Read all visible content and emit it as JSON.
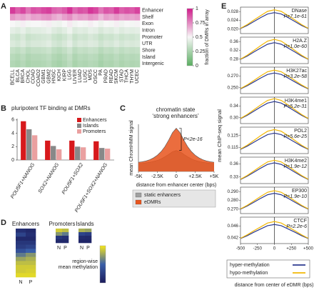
{
  "chart_data": [
    {
      "type": "heatmap",
      "panel_label": "A",
      "rows": [
        "Enhancer",
        "Shelf",
        "Exon",
        "Intron",
        "Promoter",
        "UTR",
        "Shore",
        "Island",
        "Intergenic"
      ],
      "columns": [
        "BCELL",
        "BLCA",
        "BRCA",
        "CHOL",
        "COAD",
        "COAD2",
        "GBM1",
        "GBM2",
        "HNSC",
        "KICH",
        "KIRP",
        "LGG",
        "LIVER",
        "LUAD",
        "LUSC",
        "MDS",
        "OSCC",
        "PA",
        "PRAD",
        "READ",
        "SKCM",
        "STAD",
        "THCA",
        "THYM",
        "UCEC"
      ],
      "values": [
        [
          0.93,
          0.85,
          0.9,
          0.8,
          0.88,
          0.86,
          0.9,
          0.92,
          0.84,
          0.82,
          0.86,
          0.95,
          0.83,
          0.88,
          0.86,
          0.94,
          0.9,
          0.8,
          0.87,
          0.85,
          0.93,
          0.85,
          0.88,
          0.86,
          0.91
        ],
        [
          0.72,
          0.68,
          0.7,
          0.66,
          0.7,
          0.69,
          0.72,
          0.73,
          0.68,
          0.65,
          0.7,
          0.74,
          0.67,
          0.7,
          0.69,
          0.73,
          0.71,
          0.64,
          0.7,
          0.68,
          0.72,
          0.68,
          0.7,
          0.69,
          0.71
        ],
        [
          0.5,
          0.48,
          0.52,
          0.49,
          0.5,
          0.5,
          0.51,
          0.52,
          0.48,
          0.47,
          0.5,
          0.53,
          0.48,
          0.5,
          0.49,
          0.52,
          0.5,
          0.47,
          0.5,
          0.49,
          0.52,
          0.48,
          0.5,
          0.49,
          0.51
        ],
        [
          0.44,
          0.42,
          0.45,
          0.41,
          0.43,
          0.43,
          0.44,
          0.46,
          0.42,
          0.4,
          0.43,
          0.47,
          0.41,
          0.43,
          0.42,
          0.45,
          0.44,
          0.4,
          0.43,
          0.42,
          0.45,
          0.42,
          0.44,
          0.43,
          0.44
        ],
        [
          0.38,
          0.36,
          0.4,
          0.35,
          0.37,
          0.38,
          0.39,
          0.4,
          0.36,
          0.34,
          0.37,
          0.41,
          0.35,
          0.38,
          0.37,
          0.4,
          0.38,
          0.34,
          0.37,
          0.36,
          0.39,
          0.36,
          0.38,
          0.37,
          0.39
        ],
        [
          0.41,
          0.39,
          0.42,
          0.38,
          0.4,
          0.4,
          0.41,
          0.43,
          0.39,
          0.37,
          0.4,
          0.44,
          0.38,
          0.41,
          0.4,
          0.42,
          0.41,
          0.37,
          0.4,
          0.39,
          0.42,
          0.39,
          0.41,
          0.4,
          0.41
        ],
        [
          0.34,
          0.32,
          0.35,
          0.31,
          0.33,
          0.33,
          0.34,
          0.36,
          0.32,
          0.3,
          0.33,
          0.37,
          0.31,
          0.34,
          0.33,
          0.35,
          0.34,
          0.3,
          0.33,
          0.32,
          0.35,
          0.32,
          0.34,
          0.33,
          0.34
        ],
        [
          0.3,
          0.28,
          0.31,
          0.27,
          0.29,
          0.29,
          0.3,
          0.32,
          0.28,
          0.26,
          0.29,
          0.33,
          0.27,
          0.3,
          0.29,
          0.31,
          0.3,
          0.26,
          0.29,
          0.28,
          0.31,
          0.28,
          0.3,
          0.29,
          0.3
        ],
        [
          0.28,
          0.26,
          0.29,
          0.25,
          0.27,
          0.27,
          0.28,
          0.3,
          0.26,
          0.24,
          0.27,
          0.31,
          0.25,
          0.28,
          0.27,
          0.29,
          0.28,
          0.24,
          0.27,
          0.26,
          0.29,
          0.26,
          0.28,
          0.27,
          0.28
        ]
      ],
      "zlim": [
        0,
        1
      ],
      "zticks": [
        0,
        0.25,
        0.5,
        0.75,
        1
      ],
      "colors": [
        "#5aae61",
        "#f7f7f7",
        "#d01c8b"
      ],
      "colorbar_label": "fraction of DMRs in array"
    },
    {
      "type": "bar",
      "panel_label": "B",
      "title": "pluripotent TF binding at DMRs",
      "categories": [
        "POU5F1+NANOG",
        "SOX2+NANOG",
        "POU5F1+SOX2",
        "POU5F1+SOX2+NANOG"
      ],
      "series": [
        {
          "name": "Enhancers",
          "color": "#d7191c",
          "values": [
            5.8,
            2.9,
            2.9,
            2.8
          ]
        },
        {
          "name": "Islands",
          "color": "#888888",
          "values": [
            4.6,
            2.1,
            2.0,
            1.8
          ]
        },
        {
          "name": "Promoters",
          "color": "#eaa0a0",
          "values": [
            3.7,
            1.6,
            1.9,
            1.7
          ]
        }
      ],
      "ylim": [
        0,
        6.2
      ],
      "yticks": [
        0,
        2,
        4,
        6
      ],
      "legend": "upper right"
    },
    {
      "type": "line",
      "panel_label": "C",
      "title": [
        "chromatin state",
        "‘strong enhancers’"
      ],
      "x": [
        -5000,
        -4500,
        -4000,
        -3500,
        -3000,
        -2500,
        -2000,
        -1500,
        -1000,
        -500,
        0,
        500,
        1000,
        1500,
        2000,
        2500,
        3000,
        3500,
        4000,
        4500,
        5000
      ],
      "series": [
        {
          "name": "static enhancers",
          "color": "#a0a0a0",
          "values": [
            0.3,
            0.31,
            0.33,
            0.35,
            0.38,
            0.42,
            0.48,
            0.56,
            0.65,
            0.75,
            0.8,
            0.75,
            0.65,
            0.56,
            0.48,
            0.42,
            0.38,
            0.35,
            0.33,
            0.31,
            0.3
          ]
        },
        {
          "name": "eDMRs",
          "color": "#e8541c",
          "values": [
            0.35,
            0.37,
            0.4,
            0.45,
            0.52,
            0.62,
            0.76,
            0.95,
            1.2,
            1.48,
            1.65,
            1.48,
            1.2,
            0.95,
            0.76,
            0.62,
            0.52,
            0.45,
            0.4,
            0.37,
            0.35
          ]
        }
      ],
      "xlim": [
        -5000,
        5000
      ],
      "ylim": [
        0,
        1.8
      ],
      "xticks": [
        {
          "value": -5000,
          "label": "-5K"
        },
        {
          "value": -2500,
          "label": "-2.5K"
        },
        0,
        {
          "value": 2500,
          "label": "+2.5K"
        },
        {
          "value": 5000,
          "label": "+5K"
        }
      ],
      "xlabel": "distance from enhancer center (bps)",
      "ylabel": "mean ChromHMM signal",
      "annotation": "P<2e-16",
      "area": true,
      "legend": "below"
    },
    {
      "type": "heatmap",
      "panel_label": "D",
      "title": "Enhancers",
      "columns": [
        "N",
        "P"
      ],
      "values": [
        [
          0.15,
          0.1
        ],
        [
          0.3,
          0.15
        ],
        [
          0.1,
          0.1
        ],
        [
          0.2,
          0.2
        ],
        [
          0.25,
          0.3
        ],
        [
          0.4,
          0.5
        ],
        [
          0.6,
          0.7
        ],
        [
          0.75,
          0.8
        ],
        [
          0.85,
          0.85
        ],
        [
          0.9,
          0.9
        ],
        [
          0.9,
          0.92
        ],
        [
          0.95,
          0.95
        ]
      ],
      "zlim": [
        0,
        1
      ],
      "colors": [
        "#1b1b5c",
        "#3a5fa8",
        "#f5e61a"
      ]
    },
    {
      "type": "heatmap",
      "title": "Promoters",
      "columns": [
        "N",
        "P"
      ],
      "values": [
        [
          0.9,
          0.85
        ],
        [
          0.7,
          0.6
        ],
        [
          0.2,
          0.15
        ],
        [
          0.1,
          0.1
        ]
      ],
      "zlim": [
        0,
        1
      ],
      "colors": [
        "#1b1b5c",
        "#3a5fa8",
        "#f5e61a"
      ]
    },
    {
      "type": "heatmap",
      "title": "Islands",
      "columns": [
        "N",
        "P"
      ],
      "values": [
        [
          0.8,
          0.75
        ],
        [
          0.3,
          0.25
        ],
        [
          0.12,
          0.1
        ],
        [
          0.08,
          0.08
        ]
      ],
      "zlim": [
        0,
        1
      ],
      "colors": [
        "#1b1b5c",
        "#3a5fa8",
        "#f5e61a"
      ],
      "colorbar_label": [
        "region-wise",
        "mean methylation"
      ]
    },
    {
      "type": "line",
      "panel_label": "E",
      "title": "DNase",
      "annotation": "P=7.1e-61",
      "ylabel": "mean ChIP-seq signal",
      "legend": "bottom",
      "x": [
        -500,
        -400,
        -300,
        -200,
        -100,
        0,
        100,
        200,
        300,
        400,
        500
      ],
      "xlim": [
        -500,
        500
      ],
      "ylim": [
        0.018,
        0.03
      ],
      "yticks": [
        {
          "value": 0.02,
          "label": "0.020"
        },
        0.024,
        0.028
      ],
      "series": [
        {
          "name": "hyper-methylation",
          "color": "#2b3990",
          "values": [
            0.0203,
            0.0217,
            0.0235,
            0.0253,
            0.0269,
            0.0275,
            0.0269,
            0.0253,
            0.0235,
            0.0217,
            0.0203
          ]
        },
        {
          "name": "hypo-methylation",
          "color": "#f2b705",
          "values": [
            0.0204,
            0.0221,
            0.0242,
            0.0262,
            0.0281,
            0.0288,
            0.0281,
            0.0262,
            0.0242,
            0.0221,
            0.0204
          ]
        }
      ]
    },
    {
      "type": "line",
      "title": "H2A.Z",
      "annotation": "P=1.0e-60",
      "x": [
        -500,
        -400,
        -300,
        -200,
        -100,
        0,
        100,
        200,
        300,
        400,
        500
      ],
      "xlim": [
        -500,
        500
      ],
      "ylim": [
        0.26,
        0.38
      ],
      "yticks": [
        0.28,
        0.32,
        0.36
      ],
      "series": [
        {
          "color": "#2b3990",
          "values": [
            0.279,
            0.294,
            0.313,
            0.331,
            0.348,
            0.355,
            0.348,
            0.331,
            0.313,
            0.294,
            0.279
          ]
        },
        {
          "color": "#f2b705",
          "values": [
            0.28,
            0.298,
            0.32,
            0.342,
            0.362,
            0.37,
            0.362,
            0.342,
            0.32,
            0.298,
            0.28
          ]
        }
      ]
    },
    {
      "type": "line",
      "title": "H3K27ac",
      "annotation": "P=3.2e-58",
      "x": [
        -500,
        -400,
        -300,
        -200,
        -100,
        0,
        100,
        200,
        300,
        400,
        500
      ],
      "xlim": [
        -500,
        500
      ],
      "ylim": [
        0.24,
        0.285
      ],
      "yticks": [
        {
          "value": 0.25,
          "label": "0.250"
        },
        {
          "value": 0.27,
          "label": "0.270"
        }
      ],
      "series": [
        {
          "color": "#2b3990",
          "values": [
            0.248,
            0.2534,
            0.26,
            0.2666,
            0.2726,
            0.275,
            0.2726,
            0.2666,
            0.26,
            0.2534,
            0.248
          ]
        },
        {
          "color": "#f2b705",
          "values": [
            0.2485,
            0.2548,
            0.2625,
            0.2702,
            0.2772,
            0.28,
            0.2772,
            0.2702,
            0.2625,
            0.2548,
            0.2485
          ]
        }
      ]
    },
    {
      "type": "line",
      "title": "H3K4me1",
      "annotation": "P=5.2e-31",
      "x": [
        -500,
        -400,
        -300,
        -200,
        -100,
        0,
        100,
        200,
        300,
        400,
        500
      ],
      "xlim": [
        -500,
        500
      ],
      "ylim": [
        0.28,
        0.37
      ],
      "yticks": [
        {
          "value": 0.3,
          "label": "0.30"
        },
        0.34
      ],
      "series": [
        {
          "color": "#2b3990",
          "values": [
            0.2965,
            0.3082,
            0.3225,
            0.3368,
            0.3498,
            0.355,
            0.3498,
            0.3368,
            0.3225,
            0.3082,
            0.2965
          ]
        },
        {
          "color": "#f2b705",
          "values": [
            0.2975,
            0.311,
            0.3275,
            0.344,
            0.359,
            0.365,
            0.359,
            0.344,
            0.3275,
            0.311,
            0.2975
          ]
        }
      ]
    },
    {
      "type": "line",
      "title": "POL2",
      "annotation": "P=5.6e-25",
      "x": [
        -500,
        -400,
        -300,
        -200,
        -100,
        0,
        100,
        200,
        300,
        400,
        500
      ],
      "xlim": [
        -500,
        500
      ],
      "ylim": [
        0.11,
        0.132
      ],
      "yticks": [
        0.115,
        0.125
      ],
      "series": [
        {
          "color": "#2b3990",
          "values": [
            0.1135,
            0.1162,
            0.1195,
            0.1228,
            0.1258,
            0.127,
            0.1258,
            0.1228,
            0.1195,
            0.1162,
            0.1135
          ]
        },
        {
          "color": "#f2b705",
          "values": [
            0.1138,
            0.117,
            0.121,
            0.125,
            0.1286,
            0.13,
            0.1286,
            0.125,
            0.121,
            0.117,
            0.1138
          ]
        }
      ]
    },
    {
      "type": "line",
      "title": "H3K4me2",
      "annotation": "P=1.9e-12",
      "x": [
        -500,
        -400,
        -300,
        -200,
        -100,
        0,
        100,
        200,
        300,
        400,
        500
      ],
      "xlim": [
        -500,
        500
      ],
      "ylim": [
        0.315,
        0.375
      ],
      "yticks": [
        0.33,
        0.36
      ],
      "series": [
        {
          "color": "#2b3990",
          "values": [
            0.3242,
            0.3318,
            0.341,
            0.3502,
            0.3586,
            0.362,
            0.3586,
            0.3502,
            0.341,
            0.3318,
            0.3242
          ]
        },
        {
          "color": "#f2b705",
          "values": [
            0.3248,
            0.3334,
            0.344,
            0.3546,
            0.3642,
            0.368,
            0.3642,
            0.3546,
            0.344,
            0.3334,
            0.3248
          ]
        }
      ]
    },
    {
      "type": "line",
      "title": "EP300",
      "annotation": "P=1.9e-10",
      "x": [
        -500,
        -400,
        -300,
        -200,
        -100,
        0,
        100,
        200,
        300,
        400,
        500
      ],
      "xlim": [
        -500,
        500
      ],
      "ylim": [
        0.265,
        0.295
      ],
      "yticks": [
        {
          "value": 0.27,
          "label": "0.270"
        },
        {
          "value": 0.28,
          "label": "0.280"
        },
        {
          "value": 0.29,
          "label": "0.290"
        }
      ],
      "series": [
        {
          "color": "#2b3990",
          "values": [
            0.27,
            0.2736,
            0.278,
            0.2824,
            0.2864,
            0.288,
            0.2864,
            0.2824,
            0.278,
            0.2736,
            0.27
          ]
        },
        {
          "color": "#f2b705",
          "values": [
            0.2703,
            0.2744,
            0.2795,
            0.2846,
            0.2892,
            0.291,
            0.2892,
            0.2846,
            0.2795,
            0.2744,
            0.2703
          ]
        }
      ]
    },
    {
      "type": "line",
      "title": "CTCF",
      "annotation": "P=2.2e-6",
      "x": [
        -500,
        -400,
        -300,
        -200,
        -100,
        0,
        100,
        200,
        300,
        400,
        500
      ],
      "xlim": [
        -500,
        500
      ],
      "ylim": [
        0.04,
        0.049
      ],
      "yticks": [
        0.042,
        0.046
      ],
      "xticks": [
        -500,
        -250,
        0,
        {
          "value": 250,
          "label": "+250"
        },
        {
          "value": 500,
          "label": "+500"
        }
      ],
      "xlabel": "distance from center of eDMR (bps)",
      "series": [
        {
          "color": "#2b3990",
          "values": [
            0.0417,
            0.0427,
            0.0439,
            0.045,
            0.0461,
            0.0465,
            0.0461,
            0.045,
            0.0439,
            0.0427,
            0.0417
          ]
        },
        {
          "color": "#f2b705",
          "values": [
            0.0418,
            0.043,
            0.0444,
            0.0457,
            0.047,
            0.0475,
            0.047,
            0.0457,
            0.0444,
            0.043,
            0.0418
          ]
        }
      ]
    }
  ]
}
